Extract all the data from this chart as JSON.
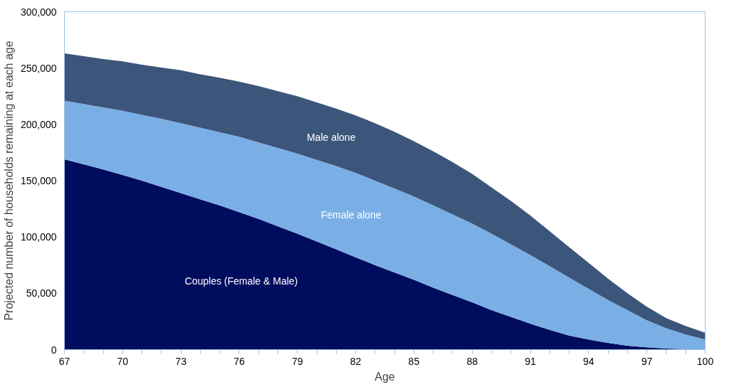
{
  "chart_data": {
    "type": "area",
    "stacked": true,
    "xlabel": "Age",
    "ylabel": "Projected number of households remaining at each age",
    "x": [
      67,
      68,
      69,
      70,
      71,
      72,
      73,
      74,
      75,
      76,
      77,
      78,
      79,
      80,
      81,
      82,
      83,
      84,
      85,
      86,
      87,
      88,
      89,
      90,
      91,
      92,
      93,
      94,
      95,
      96,
      97,
      98,
      99,
      100
    ],
    "series": [
      {
        "name": "Couples (Female & Male)",
        "color": "#000c5e",
        "values": [
          169000,
          164500,
          160000,
          155000,
          150000,
          144500,
          139000,
          133500,
          128000,
          122000,
          116000,
          109500,
          103000,
          96000,
          89000,
          82000,
          75000,
          68500,
          62000,
          55000,
          48500,
          42000,
          35000,
          29000,
          23000,
          17500,
          12500,
          9000,
          6000,
          3500,
          2000,
          1000,
          500,
          0
        ]
      },
      {
        "name": "Female alone",
        "color": "#7aafe6",
        "values": [
          52000,
          53500,
          55000,
          57000,
          58500,
          60500,
          62000,
          63500,
          65000,
          67000,
          68000,
          69500,
          71000,
          72500,
          74000,
          75000,
          75000,
          74500,
          74000,
          73000,
          71500,
          70000,
          68000,
          64500,
          61000,
          56500,
          51500,
          45000,
          38000,
          31500,
          24000,
          18000,
          13000,
          9000
        ]
      },
      {
        "name": "Male alone",
        "color": "#3c557a",
        "values": [
          42000,
          42500,
          43000,
          44000,
          44500,
          45500,
          47000,
          47500,
          48500,
          49000,
          50000,
          50500,
          51000,
          51000,
          51000,
          51000,
          51000,
          50500,
          49000,
          48000,
          46500,
          44000,
          41000,
          38500,
          35000,
          31000,
          27000,
          23000,
          19000,
          15000,
          12000,
          9000,
          7500,
          6000
        ]
      }
    ],
    "xlim": [
      67,
      100
    ],
    "xticks": [
      67,
      {
        "value": 68,
        "label": null
      },
      {
        "value": 69,
        "label": null
      },
      70,
      {
        "value": 71,
        "label": null
      },
      {
        "value": 72,
        "label": null
      },
      73,
      {
        "value": 74,
        "label": null
      },
      {
        "value": 75,
        "label": null
      },
      76,
      {
        "value": 77,
        "label": null
      },
      {
        "value": 78,
        "label": null
      },
      79,
      {
        "value": 80,
        "label": null
      },
      {
        "value": 81,
        "label": null
      },
      82,
      {
        "value": 83,
        "label": null
      },
      {
        "value": 84,
        "label": null
      },
      85,
      {
        "value": 86,
        "label": null
      },
      {
        "value": 87,
        "label": null
      },
      88,
      {
        "value": 89,
        "label": null
      },
      {
        "value": 90,
        "label": null
      },
      91,
      {
        "value": 92,
        "label": null
      },
      {
        "value": 93,
        "label": null
      },
      94,
      {
        "value": 95,
        "label": null
      },
      {
        "value": 96,
        "label": null
      },
      97,
      {
        "value": 98,
        "label": null
      },
      {
        "value": 99,
        "label": null
      },
      100
    ],
    "ylim": [
      0,
      300000
    ],
    "yticks": [
      0,
      {
        "value": 50000,
        "label": "50,000"
      },
      {
        "value": 100000,
        "label": "100,000"
      },
      {
        "value": 150000,
        "label": "150,000"
      },
      {
        "value": 200000,
        "label": "200,000"
      },
      {
        "value": 250000,
        "label": "250,000"
      },
      {
        "value": 300000,
        "label": "300,000"
      }
    ],
    "grid": false,
    "legend": false
  }
}
